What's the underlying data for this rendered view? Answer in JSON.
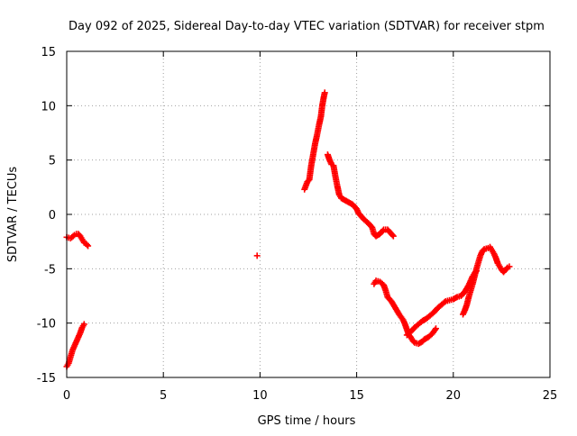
{
  "colors": {
    "background": "#ffffff",
    "axis": "#000000",
    "grid": "#a0a0a0",
    "series": "#ff0000"
  },
  "chart_data": {
    "type": "scatter",
    "title": "Day 092 of 2025, Sidereal Day-to-day VTEC variation (SDTVAR) for receiver stpm",
    "xlabel": "GPS time / hours",
    "ylabel": "SDTVAR / TECUs",
    "xlim": [
      0,
      25
    ],
    "ylim": [
      -15,
      15
    ],
    "xticks": [
      0,
      5,
      10,
      15,
      20,
      25
    ],
    "yticks": [
      -15,
      -10,
      -5,
      0,
      5,
      10,
      15
    ],
    "grid": true,
    "marker": "plus",
    "series": [
      {
        "name": "SDTVAR",
        "segments": [
          {
            "points": [
              [
                0.0,
                -2.1
              ],
              [
                0.2,
                -2.2
              ],
              [
                0.4,
                -1.9
              ],
              [
                0.5,
                -1.8
              ],
              [
                0.6,
                -1.8
              ],
              [
                0.7,
                -2.0
              ],
              [
                0.8,
                -2.3
              ],
              [
                0.9,
                -2.6
              ],
              [
                1.0,
                -2.7
              ],
              [
                1.1,
                -2.9
              ]
            ]
          },
          {
            "points": [
              [
                0.0,
                -14.0
              ],
              [
                0.1,
                -13.7
              ],
              [
                0.2,
                -13.1
              ],
              [
                0.3,
                -12.5
              ],
              [
                0.4,
                -12.1
              ],
              [
                0.5,
                -11.7
              ],
              [
                0.6,
                -11.3
              ],
              [
                0.7,
                -10.9
              ],
              [
                0.8,
                -10.4
              ],
              [
                0.9,
                -10.1
              ]
            ]
          },
          {
            "points": [
              [
                9.85,
                -3.8
              ]
            ]
          },
          {
            "points": [
              [
                12.3,
                2.3
              ],
              [
                12.45,
                3.0
              ],
              [
                12.55,
                3.2
              ],
              [
                12.65,
                4.5
              ],
              [
                12.75,
                5.5
              ],
              [
                12.85,
                6.5
              ],
              [
                12.95,
                7.3
              ],
              [
                13.05,
                8.2
              ],
              [
                13.15,
                9.0
              ],
              [
                13.22,
                10.0
              ],
              [
                13.3,
                10.8
              ],
              [
                13.35,
                11.2
              ]
            ]
          },
          {
            "points": [
              [
                13.5,
                5.5
              ],
              [
                13.6,
                5.0
              ],
              [
                13.7,
                4.6
              ],
              [
                13.8,
                4.5
              ],
              [
                13.9,
                3.5
              ],
              [
                14.0,
                2.6
              ],
              [
                14.1,
                1.8
              ],
              [
                14.2,
                1.5
              ],
              [
                14.4,
                1.3
              ],
              [
                14.6,
                1.1
              ],
              [
                14.8,
                0.9
              ],
              [
                15.0,
                0.5
              ],
              [
                15.1,
                0.1
              ],
              [
                15.2,
                -0.1
              ],
              [
                15.4,
                -0.5
              ],
              [
                15.6,
                -0.8
              ],
              [
                15.8,
                -1.2
              ],
              [
                15.9,
                -1.8
              ],
              [
                16.0,
                -2.0
              ],
              [
                16.2,
                -1.8
              ],
              [
                16.4,
                -1.4
              ],
              [
                16.6,
                -1.4
              ],
              [
                16.8,
                -1.8
              ],
              [
                16.9,
                -2.0
              ]
            ]
          },
          {
            "points": [
              [
                15.9,
                -6.4
              ],
              [
                16.0,
                -6.1
              ],
              [
                16.2,
                -6.2
              ],
              [
                16.4,
                -6.5
              ],
              [
                16.5,
                -7.0
              ],
              [
                16.6,
                -7.6
              ],
              [
                16.8,
                -8.0
              ],
              [
                17.0,
                -8.6
              ],
              [
                17.2,
                -9.2
              ],
              [
                17.4,
                -9.7
              ],
              [
                17.5,
                -10.1
              ],
              [
                17.6,
                -10.6
              ],
              [
                17.7,
                -11.1
              ],
              [
                17.8,
                -11.3
              ],
              [
                17.9,
                -11.6
              ],
              [
                18.0,
                -11.8
              ],
              [
                18.2,
                -11.9
              ],
              [
                18.4,
                -11.7
              ],
              [
                18.5,
                -11.5
              ],
              [
                18.7,
                -11.3
              ],
              [
                18.9,
                -11.0
              ],
              [
                19.1,
                -10.5
              ]
            ]
          },
          {
            "points": [
              [
                17.6,
                -11.1
              ],
              [
                17.8,
                -10.8
              ],
              [
                18.0,
                -10.4
              ],
              [
                18.2,
                -10.1
              ],
              [
                18.4,
                -9.8
              ],
              [
                18.6,
                -9.6
              ],
              [
                18.8,
                -9.3
              ],
              [
                19.0,
                -9.0
              ],
              [
                19.2,
                -8.6
              ],
              [
                19.4,
                -8.3
              ],
              [
                19.6,
                -8.0
              ],
              [
                19.8,
                -7.9
              ],
              [
                20.0,
                -7.8
              ],
              [
                20.2,
                -7.6
              ],
              [
                20.4,
                -7.5
              ],
              [
                20.6,
                -7.1
              ],
              [
                20.8,
                -6.5
              ],
              [
                21.0,
                -5.7
              ],
              [
                21.1,
                -5.4
              ],
              [
                21.2,
                -5.2
              ]
            ]
          },
          {
            "points": [
              [
                20.5,
                -9.2
              ],
              [
                20.6,
                -8.8
              ],
              [
                20.7,
                -8.3
              ],
              [
                20.8,
                -7.6
              ],
              [
                20.9,
                -7.0
              ],
              [
                21.0,
                -6.4
              ],
              [
                21.1,
                -5.7
              ],
              [
                21.2,
                -5.0
              ],
              [
                21.3,
                -4.4
              ],
              [
                21.4,
                -3.8
              ],
              [
                21.5,
                -3.4
              ],
              [
                21.6,
                -3.2
              ],
              [
                21.8,
                -3.1
              ],
              [
                21.9,
                -3.0
              ],
              [
                22.0,
                -3.3
              ],
              [
                22.1,
                -3.6
              ],
              [
                22.2,
                -4.0
              ],
              [
                22.3,
                -4.5
              ],
              [
                22.4,
                -4.8
              ],
              [
                22.5,
                -5.1
              ],
              [
                22.6,
                -5.3
              ],
              [
                22.7,
                -5.1
              ],
              [
                22.8,
                -4.9
              ],
              [
                22.9,
                -4.8
              ]
            ]
          }
        ]
      }
    ]
  }
}
